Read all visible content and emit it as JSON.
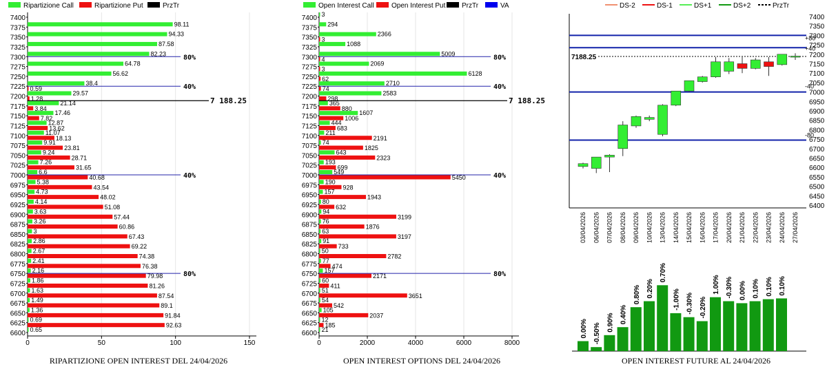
{
  "chart_data": [
    {
      "type": "bar",
      "orientation": "horizontal",
      "title": "RIPARTIZIONE OPEN INTEREST DEL 24/04/2026",
      "legend": [
        "Ripartizione Call",
        "Ripartizione Put",
        "PrzTr"
      ],
      "colors": {
        "call": "#33ee33",
        "put": "#ee1111",
        "przTr": "#000000",
        "marker": "#2222aa"
      },
      "xlim": [
        0,
        150
      ],
      "xticks": [
        "0",
        "50",
        "100",
        "150"
      ],
      "strikes": [
        "7400",
        "7375",
        "7350",
        "7325",
        "7300",
        "7275",
        "7250",
        "7225",
        "7200",
        "7175",
        "7150",
        "7125",
        "7100",
        "7075",
        "7050",
        "7025",
        "7000",
        "6975",
        "6950",
        "6925",
        "6900",
        "6875",
        "6850",
        "6825",
        "6800",
        "6775",
        "6750",
        "6725",
        "6700",
        "6675",
        "6650",
        "6625",
        "6600"
      ],
      "call": [
        null,
        98.11,
        94.33,
        87.58,
        82.23,
        64.78,
        56.62,
        38.4,
        29.57,
        21.14,
        17.46,
        12.87,
        11.07,
        9.91,
        9.24,
        7.26,
        6.6,
        5.38,
        4.73,
        4.14,
        3.63,
        3.26,
        3,
        2.86,
        2.67,
        2.41,
        2.16,
        1.86,
        1.63,
        1.49,
        1.36,
        0.69,
        0.65
      ],
      "call_labels": [
        "",
        "98.11",
        "94.33",
        "87.58",
        "82.23",
        "64.78",
        "56.62",
        "38.4",
        "29.57",
        "21.14",
        "17.46",
        "12.87",
        "11.07",
        "9.91",
        "9.24",
        "7.26",
        "6.6",
        "5.38",
        "4.73",
        "4.14",
        "3.63",
        "3.26",
        "3",
        "2.86",
        "2.67",
        "2.41",
        "2.16",
        "1.86",
        "1.63",
        "1.49",
        "1.36",
        "0.69",
        "0.65"
      ],
      "put": [
        null,
        null,
        null,
        null,
        null,
        null,
        null,
        0.59,
        1.28,
        3.84,
        7.82,
        13.62,
        18.13,
        23.81,
        28.71,
        31.65,
        40.68,
        43.54,
        48.02,
        51.08,
        57.44,
        60.86,
        67.43,
        69.22,
        74.38,
        76.38,
        79.98,
        81.26,
        87.54,
        89.1,
        91.84,
        92.63,
        null
      ],
      "put_labels": [
        "",
        "",
        "",
        "",
        "",
        "",
        "",
        "0.59",
        "1.28",
        "3.84",
        "7.82",
        "13.62",
        "18.13",
        "23.81",
        "28.71",
        "31.65",
        "40.68",
        "43.54",
        "48.02",
        "51.08",
        "57.44",
        "60.86",
        "67.43",
        "69.22",
        "74.38",
        "76.38",
        "79.98",
        "81.26",
        "87.54",
        "89.1",
        "91.84",
        "92.63",
        ""
      ],
      "markers": [
        {
          "strike": "7300",
          "label": "80%"
        },
        {
          "strike": "7225",
          "label": "40%"
        },
        {
          "strike": "7000",
          "label": "40%"
        },
        {
          "strike": "6750",
          "label": "80%"
        }
      ],
      "przTr": 7188.25,
      "przTr_label": "7 188.25"
    },
    {
      "type": "bar",
      "orientation": "horizontal",
      "title": "OPEN INTEREST OPTIONS DEL 24/04/2026",
      "legend": [
        "Open Interest Call",
        "Open Interest Put",
        "PrzTr",
        "VA"
      ],
      "colors": {
        "call": "#33ee33",
        "put": "#ee1111",
        "przTr": "#000000",
        "va": "#0000ee"
      },
      "xlim": [
        0,
        8000
      ],
      "xticks": [
        "0",
        "2000",
        "4000",
        "6000",
        "8000"
      ],
      "call": [
        3,
        294,
        2366,
        1088,
        5009,
        2069,
        6128,
        2710,
        2583,
        365,
        1607,
        444,
        211,
        74,
        643,
        193,
        549,
        190,
        157,
        80,
        94,
        76,
        63,
        91,
        50,
        77,
        157,
        60,
        51,
        54,
        105,
        12,
        21
      ],
      "call_labels": [
        "3",
        "294",
        "2366",
        "1088",
        "5009",
        "2069",
        "6128",
        "2710",
        "2583",
        "365",
        "1607",
        "444",
        "211",
        "74",
        "643",
        "193",
        "549",
        "190",
        "157",
        "80",
        "94",
        "76",
        "63",
        "91",
        "50",
        "77",
        "157",
        "60",
        "51",
        "54",
        "105",
        "12",
        "21"
      ],
      "put": [
        null,
        null,
        3,
        null,
        4,
        3,
        62,
        74,
        298,
        880,
        1006,
        683,
        2191,
        1825,
        2323,
        699,
        5450,
        928,
        1943,
        632,
        3199,
        1876,
        3197,
        733,
        2782,
        474,
        2171,
        411,
        3651,
        542,
        2037,
        185,
        null
      ],
      "put_labels": [
        "",
        "",
        "3",
        "",
        "4",
        "3",
        "62",
        "74",
        "298",
        "880",
        "1006",
        "683",
        "2191",
        "1825",
        "2323",
        "699",
        "5450",
        "928",
        "1943",
        "632",
        "3199",
        "1876",
        "3197",
        "733",
        "2782",
        "474",
        "2171",
        "411",
        "3651",
        "542",
        "2037",
        "185",
        ""
      ],
      "markers": [
        {
          "strike": "7300",
          "label": "80%"
        },
        {
          "strike": "7225",
          "label": "40%"
        },
        {
          "strike": "7000",
          "label": "40%"
        },
        {
          "strike": "6750",
          "label": "80%"
        }
      ],
      "przTr": 7188.25,
      "przTr_label": "7 188.25"
    },
    {
      "type": "candlestick",
      "legend": [
        "DS-2",
        "DS-1",
        "DS+1",
        "DS+2",
        "PrzTr"
      ],
      "legend_colors": [
        "#f09070",
        "#ee1111",
        "#55ee55",
        "#119911",
        "#000000"
      ],
      "ylim": [
        6400,
        7400
      ],
      "yticks": [
        "7400",
        "7350",
        "7300",
        "7250",
        "7200",
        "7150",
        "7100",
        "7050",
        "7000",
        "6950",
        "6900",
        "6850",
        "6800",
        "6750",
        "6700",
        "6650",
        "6600",
        "6550",
        "6500",
        "6450",
        "6400"
      ],
      "dates": [
        "03/04/2026",
        "06/04/2026",
        "07/04/2026",
        "08/04/2026",
        "09/04/2026",
        "10/04/2026",
        "13/04/2026",
        "14/04/2026",
        "15/04/2026",
        "16/04/2026",
        "17/04/2026",
        "20/04/2026",
        "21/04/2026",
        "22/04/2026",
        "23/04/2026",
        "24/04/2026",
        "27/04/2026"
      ],
      "candles": [
        {
          "o": 6605,
          "h": 6625,
          "l": 6595,
          "c": 6620
        },
        {
          "o": 6595,
          "h": 6655,
          "l": 6570,
          "c": 6655
        },
        {
          "o": 6655,
          "h": 6670,
          "l": 6575,
          "c": 6665
        },
        {
          "o": 6700,
          "h": 6845,
          "l": 6660,
          "c": 6825
        },
        {
          "o": 6820,
          "h": 6875,
          "l": 6810,
          "c": 6870
        },
        {
          "o": 6855,
          "h": 6875,
          "l": 6845,
          "c": 6865
        },
        {
          "o": 6775,
          "h": 6935,
          "l": 6765,
          "c": 6930
        },
        {
          "o": 6930,
          "h": 7005,
          "l": 6925,
          "c": 7005
        },
        {
          "o": 7005,
          "h": 7060,
          "l": 7000,
          "c": 7060
        },
        {
          "o": 7055,
          "h": 7085,
          "l": 7050,
          "c": 7080
        },
        {
          "o": 7080,
          "h": 7185,
          "l": 7075,
          "c": 7160
        },
        {
          "o": 7110,
          "h": 7180,
          "l": 7095,
          "c": 7160
        },
        {
          "o": 7150,
          "h": 7185,
          "l": 7100,
          "c": 7125
        },
        {
          "o": 7125,
          "h": 7180,
          "l": 7120,
          "c": 7170
        },
        {
          "o": 7160,
          "h": 7185,
          "l": 7085,
          "c": 7135
        },
        {
          "o": 7145,
          "h": 7200,
          "l": 7140,
          "c": 7200
        },
        {
          "o": 7185,
          "h": 7205,
          "l": 7170,
          "c": 7190
        }
      ],
      "hlines": [
        7300,
        7235,
        7000,
        6745
      ],
      "right_labels": [
        {
          "value": 7285,
          "label": "+80"
        },
        {
          "value": 7230,
          "label": "+40"
        },
        {
          "value": 7030,
          "label": "-40"
        },
        {
          "value": 6770,
          "label": "-80"
        }
      ],
      "przTr": 7188.25,
      "przTr_label": "7188.25"
    },
    {
      "type": "bar",
      "title": "OPEN INTEREST FUTURE AL 24/04/2026",
      "values": [
        0.0,
        -0.5,
        0.9,
        0.4,
        0.8,
        0.2,
        0.7,
        -1.0,
        -0.3,
        -0.2,
        1.0,
        -0.3,
        0.0,
        0.1,
        0.1,
        0.1
      ],
      "labels": [
        "0.00%",
        "-0.50%",
        "0.90%",
        "0.40%",
        "0.80%",
        "0.20%",
        "0.70%",
        "-1.00%",
        "-0.30%",
        "-0.20%",
        "1.00%",
        "-0.30%",
        "0.00%",
        "0.10%",
        "0.10%",
        "0.10%"
      ],
      "levels": [
        25,
        10,
        40,
        60,
        110,
        125,
        165,
        95,
        85,
        75,
        135,
        125,
        120,
        125,
        130,
        132
      ],
      "color": "#119911"
    }
  ]
}
